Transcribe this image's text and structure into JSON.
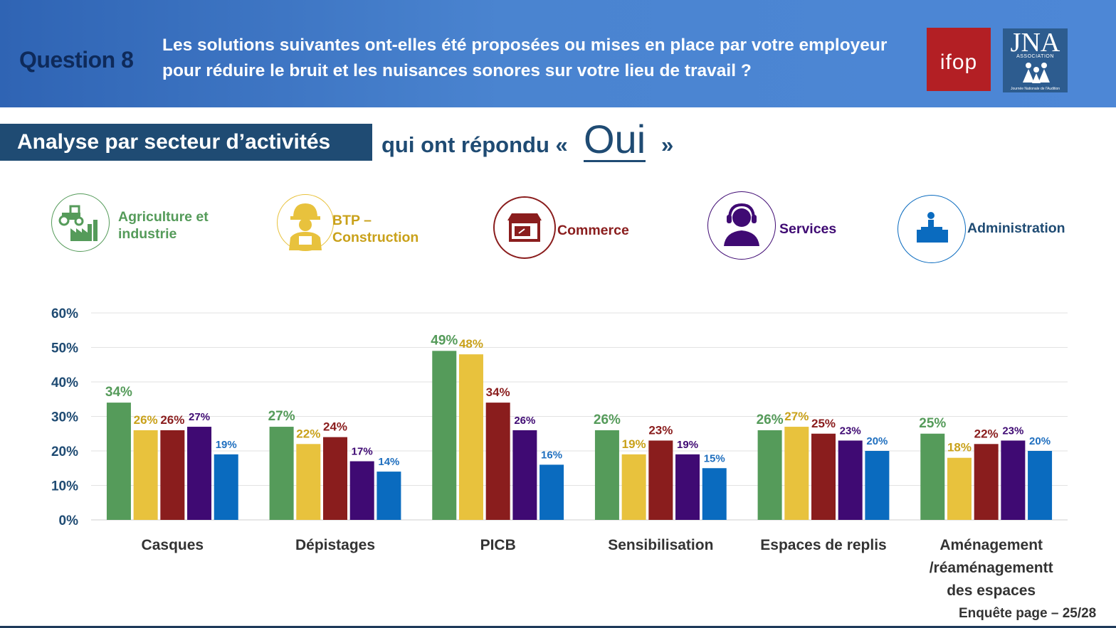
{
  "header": {
    "question_label": "Question 8",
    "question_text": "Les solutions suivantes ont-elles été proposées ou mises en place par votre employeur pour réduire le bruit et les nuisances sonores sur votre lieu de travail ?",
    "logo_ifop_text": "ifop",
    "logo_jna_text": "JNA",
    "logo_jna_assoc": "ASSOCIATION",
    "logo_jna_sub": "Journée Nationale de l'Audition"
  },
  "section": {
    "title": "Analyse par secteur d’activités",
    "subtitle": "qui ont répondu «",
    "highlight": "Oui",
    "close_quote": "»"
  },
  "legend": [
    {
      "label": "Agriculture et industrie",
      "color": "#559b5a",
      "icon": "tractor-factory-icon"
    },
    {
      "label": "BTP – Construction",
      "color": "#e8c23d",
      "icon": "construction-worker-icon"
    },
    {
      "label": "Commerce",
      "color": "#8a1d1d",
      "icon": "shop-icon"
    },
    {
      "label": "Services",
      "color": "#3f0a73",
      "icon": "headset-operator-icon"
    },
    {
      "label": "Administration",
      "color": "#0a6bbf",
      "icon": "office-desk-icon"
    }
  ],
  "chart_data": {
    "type": "bar",
    "categories": [
      "Casques",
      "Dépistages",
      "PICB",
      "Sensibilisation",
      "Espaces de replis",
      "Aménagement /réaménagementt des espaces"
    ],
    "series": [
      {
        "name": "Agriculture et industrie",
        "values": [
          34,
          27,
          49,
          26,
          26,
          25
        ]
      },
      {
        "name": "BTP – Construction",
        "values": [
          26,
          22,
          48,
          19,
          27,
          18
        ]
      },
      {
        "name": "Commerce",
        "values": [
          26,
          24,
          34,
          23,
          25,
          22
        ]
      },
      {
        "name": "Services",
        "values": [
          27,
          17,
          26,
          19,
          23,
          23
        ]
      },
      {
        "name": "Administration",
        "values": [
          19,
          14,
          16,
          15,
          20,
          20
        ]
      }
    ],
    "yticks": [
      "0%",
      "10%",
      "20%",
      "30%",
      "40%",
      "50%",
      "60%"
    ],
    "ylim": [
      0,
      60
    ],
    "value_suffix": "%",
    "label_colors": [
      "#559b5a",
      "#c9a11a",
      "#8a1d1d",
      "#3f0a73",
      "#1f6fbf"
    ],
    "grid": true,
    "legend_position": "top"
  },
  "footer": {
    "page_label": "Enquête page – 25/28"
  }
}
